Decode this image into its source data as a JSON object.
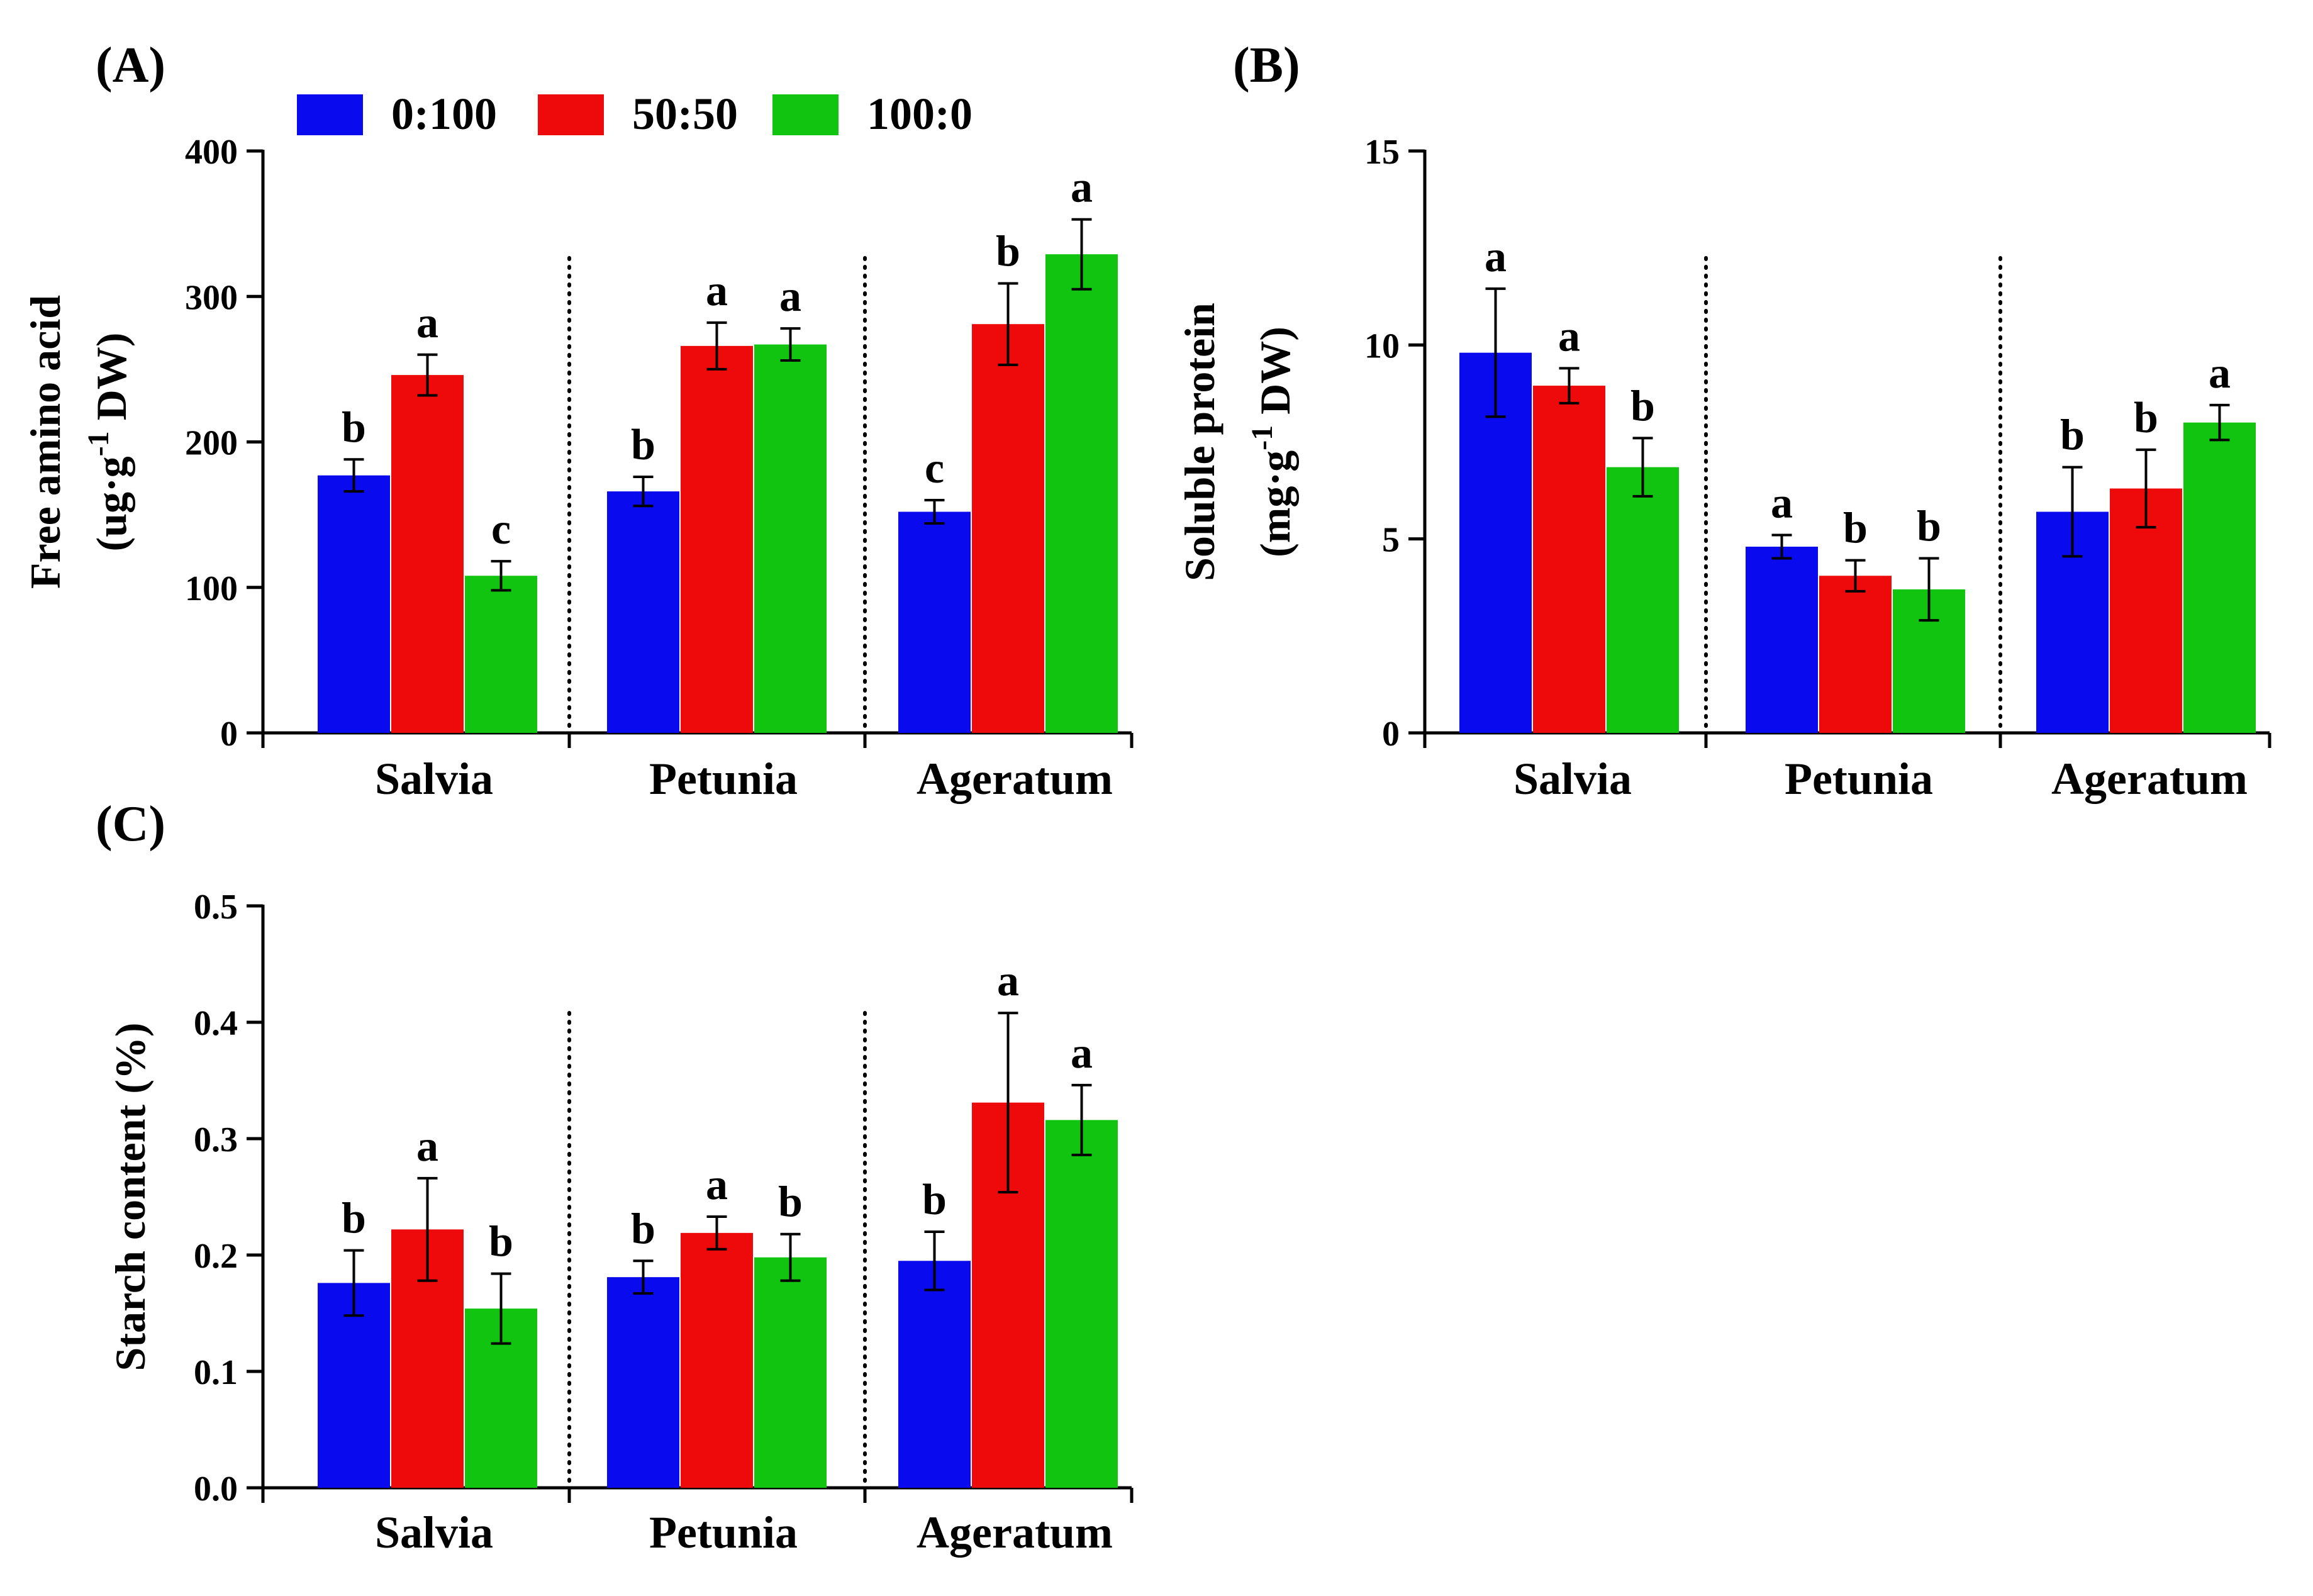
{
  "legend": [
    {
      "name": "0:100",
      "color": "#0a0aee"
    },
    {
      "name": "50:50",
      "color": "#ee0a0a"
    },
    {
      "name": "100:0",
      "color": "#10c410"
    }
  ],
  "chart_data": [
    {
      "panel": "(A)",
      "type": "bar",
      "categories": [
        "Salvia",
        "Petunia",
        "Ageratum"
      ],
      "ylabel_line1": "Free amino acid",
      "ylabel_line2_pre": "(ug·g",
      "ylabel_sup": "-1",
      "ylabel_line2_post": " DW)",
      "ylim": [
        0,
        400
      ],
      "yticks": [
        0,
        100,
        200,
        300,
        400
      ],
      "ytick_labels": [
        "0",
        "100",
        "200",
        "300",
        "400"
      ],
      "series": [
        {
          "name": "0:100",
          "values": [
            177,
            166,
            152
          ],
          "errors": [
            11,
            10,
            8
          ],
          "letters": [
            "b",
            "b",
            "c"
          ]
        },
        {
          "name": "50:50",
          "values": [
            246,
            266,
            281
          ],
          "errors": [
            14,
            16,
            28
          ],
          "letters": [
            "a",
            "a",
            "b"
          ]
        },
        {
          "name": "100:0",
          "values": [
            108,
            267,
            329
          ],
          "errors": [
            10,
            11,
            24
          ],
          "letters": [
            "c",
            "a",
            "a"
          ]
        }
      ]
    },
    {
      "panel": "(B)",
      "type": "bar",
      "categories": [
        "Salvia",
        "Petunia",
        "Ageratum"
      ],
      "ylabel_line1": "Soluble protein",
      "ylabel_line2_pre": "(mg·g",
      "ylabel_sup": "-1",
      "ylabel_line2_post": " DW)",
      "ylim": [
        0,
        15
      ],
      "yticks": [
        0,
        5,
        10,
        15
      ],
      "ytick_labels": [
        "0",
        "5",
        "10",
        "15"
      ],
      "series": [
        {
          "name": "0:100",
          "values": [
            9.8,
            4.8,
            5.7
          ],
          "errors": [
            1.65,
            0.3,
            1.15
          ],
          "letters": [
            "a",
            "a",
            "b"
          ]
        },
        {
          "name": "50:50",
          "values": [
            8.95,
            4.05,
            6.3
          ],
          "errors": [
            0.45,
            0.4,
            1.0
          ],
          "letters": [
            "a",
            "b",
            "b"
          ]
        },
        {
          "name": "100:0",
          "values": [
            6.85,
            3.7,
            8.0
          ],
          "errors": [
            0.75,
            0.8,
            0.45
          ],
          "letters": [
            "b",
            "b",
            "a"
          ]
        }
      ]
    },
    {
      "panel": "(C)",
      "type": "bar",
      "categories": [
        "Salvia",
        "Petunia",
        "Ageratum"
      ],
      "ylabel_line1": "Starch content (%)",
      "ylim": [
        0,
        0.5
      ],
      "yticks": [
        0,
        0.1,
        0.2,
        0.3,
        0.4,
        0.5
      ],
      "ytick_labels": [
        "0.0",
        "0.1",
        "0.2",
        "0.3",
        "0.4",
        "0.5"
      ],
      "series": [
        {
          "name": "0:100",
          "values": [
            0.176,
            0.181,
            0.195
          ],
          "errors": [
            0.028,
            0.014,
            0.025
          ],
          "letters": [
            "b",
            "b",
            "b"
          ]
        },
        {
          "name": "50:50",
          "values": [
            0.222,
            0.219,
            0.331
          ],
          "errors": [
            0.044,
            0.014,
            0.077
          ],
          "letters": [
            "a",
            "a",
            "a"
          ]
        },
        {
          "name": "100:0",
          "values": [
            0.154,
            0.198,
            0.316
          ],
          "errors": [
            0.03,
            0.02,
            0.03
          ],
          "letters": [
            "b",
            "b",
            "a"
          ]
        }
      ]
    }
  ]
}
